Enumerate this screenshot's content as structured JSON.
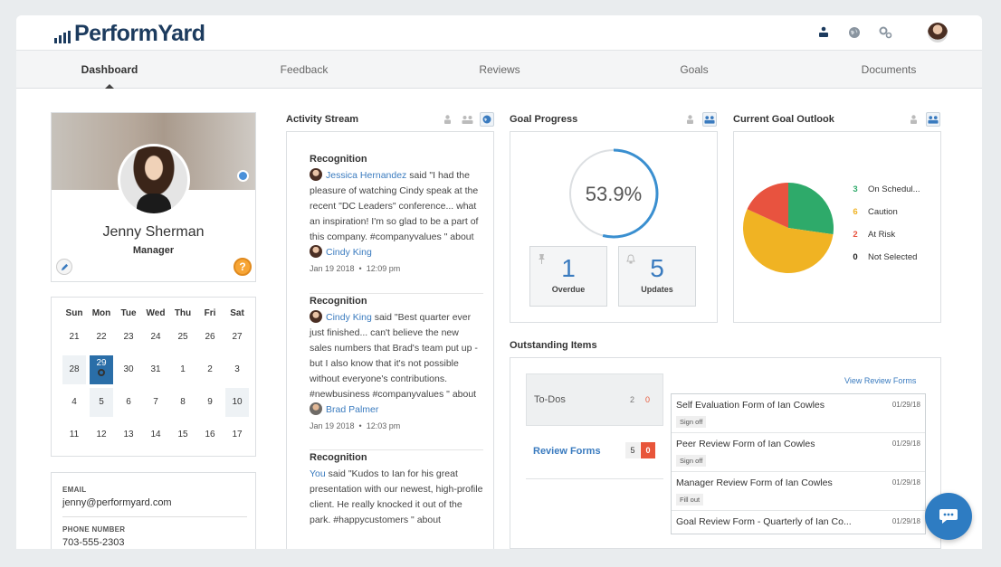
{
  "header": {
    "logo_text": "PerformYard"
  },
  "nav": {
    "items": [
      {
        "label": "Dashboard"
      },
      {
        "label": "Feedback"
      },
      {
        "label": "Reviews"
      },
      {
        "label": "Goals"
      },
      {
        "label": "Documents"
      }
    ],
    "active": "Dashboard"
  },
  "profile": {
    "name": "Jenny Sherman",
    "role": "Manager",
    "help_glyph": "?"
  },
  "calendar": {
    "weekdays": [
      "Sun",
      "Mon",
      "Tue",
      "Wed",
      "Thu",
      "Fri",
      "Sat"
    ],
    "weeks": [
      [
        "21",
        "22",
        "23",
        "24",
        "25",
        "26",
        "27"
      ],
      [
        "28",
        "29",
        "30",
        "31",
        "1",
        "2",
        "3"
      ],
      [
        "4",
        "5",
        "6",
        "7",
        "8",
        "9",
        "10"
      ],
      [
        "11",
        "12",
        "13",
        "14",
        "15",
        "16",
        "17"
      ]
    ],
    "today": "29"
  },
  "contact": {
    "email_label": "EMAIL",
    "email": "jenny@performyard.com",
    "phone_label": "PHONE NUMBER",
    "phone": "703-555-2303"
  },
  "activity": {
    "title": "Activity Stream",
    "items": [
      {
        "head": "Recognition",
        "author": "Jessica Hernandez",
        "text": " said \"I had the pleasure of watching Cindy speak at the recent \"DC Leaders\" conference... what an inspiration! I'm so glad to be a part of this company. #companyvalues \" about ",
        "about": "Cindy King",
        "date": "Jan 19 2018",
        "time": "12:09 pm"
      },
      {
        "head": "Recognition",
        "author": "Cindy King",
        "text": " said \"Best quarter ever just finished... can't believe the new sales numbers that Brad's team put up - but I also know that it's not possible without everyone's contributions. #newbusiness #companyvalues \" about ",
        "about": "Brad Palmer",
        "date": "Jan 19 2018",
        "time": "12:03 pm"
      },
      {
        "head": "Recognition",
        "author": "You",
        "text": " said \"Kudos to Ian for his great presentation with our newest, high-profile client. He really knocked it out of the park. #happycustomers \" about"
      }
    ]
  },
  "goal_progress": {
    "title": "Goal Progress",
    "percent_label": "53.9%",
    "percent": 53.9,
    "overdue_count": "1",
    "overdue_label": "Overdue",
    "updates_count": "5",
    "updates_label": "Updates"
  },
  "goal_outlook": {
    "title": "Current Goal Outlook",
    "legend": [
      {
        "count": "3",
        "label": "On Schedul...",
        "color": "#2eaa6a"
      },
      {
        "count": "6",
        "label": "Caution",
        "color": "#f0b323"
      },
      {
        "count": "2",
        "label": "At Risk",
        "color": "#e8533f"
      },
      {
        "count": "0",
        "label": "Not Selected",
        "color": "#222222"
      }
    ],
    "slices": [
      {
        "label": "On Schedule",
        "value": 3,
        "color": "#2eaa6a"
      },
      {
        "label": "Caution",
        "value": 6,
        "color": "#f0b323"
      },
      {
        "label": "At Risk",
        "value": 2,
        "color": "#e8533f"
      }
    ]
  },
  "outstanding": {
    "title": "Outstanding Items",
    "todos_label": "To-Dos",
    "todos_count": "2",
    "todos_overdue": "0",
    "review_label": "Review Forms",
    "review_count": "5",
    "review_overdue": "0",
    "view_link": "View Review Forms",
    "forms": [
      {
        "title": "Self Evaluation Form of Ian Cowles",
        "date": "01/29/18",
        "action": "Sign off"
      },
      {
        "title": "Peer Review Form of Ian Cowles",
        "date": "01/29/18",
        "action": "Sign off"
      },
      {
        "title": "Manager Review Form of Ian Cowles",
        "date": "01/29/18",
        "action": "Fill out"
      },
      {
        "title": "Goal Review Form - Quarterly of Ian Co...",
        "date": "01/29/18",
        "action": ""
      }
    ]
  },
  "colors": {
    "brand": "#1c3b5e",
    "accent": "#3a7bbf",
    "alert": "#e8553a"
  }
}
